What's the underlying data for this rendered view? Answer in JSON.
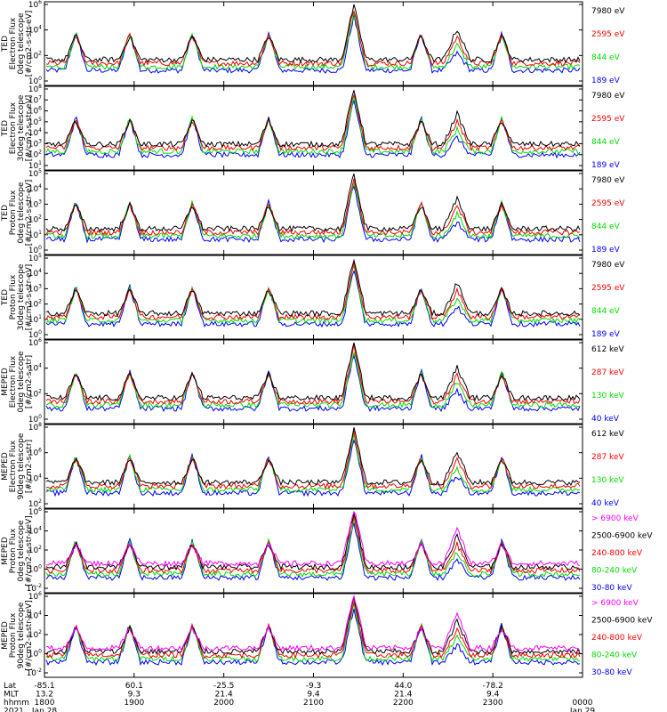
{
  "chart_data": {
    "type": "line",
    "title": "",
    "time_range_utc": [
      "2021 Jan 28 1800",
      "2021 Jan 29 0000"
    ],
    "panels": [
      {
        "ylabel": [
          "TED",
          "Electron Flux",
          "0deg telescope",
          "[#/cm2-s-str-eV]"
        ],
        "yticks": [
          "10^6",
          "10^4",
          "10^2",
          "10^0"
        ],
        "ylim_exp": [
          0,
          6
        ],
        "series": [
          {
            "name": "7980 eV",
            "color": "#000000"
          },
          {
            "name": "2595 eV",
            "color": "#ff0000"
          },
          {
            "name": "844 eV",
            "color": "#00dd00"
          },
          {
            "name": "189 eV",
            "color": "#0000ff"
          }
        ]
      },
      {
        "ylabel": [
          "TED",
          "Electron Flux",
          "30deg telescope",
          "[#/cm2-s-str-eV]"
        ],
        "yticks": [
          "10^8",
          "10^7",
          "10^6",
          "10^5",
          "10^4",
          "10^3",
          "10^2",
          "10^1"
        ],
        "ylim_exp": [
          0,
          8
        ],
        "series": [
          {
            "name": "7980 eV",
            "color": "#000000"
          },
          {
            "name": "2595 eV",
            "color": "#ff0000"
          },
          {
            "name": "844 eV",
            "color": "#00dd00"
          },
          {
            "name": "189 eV",
            "color": "#0000ff"
          }
        ]
      },
      {
        "ylabel": [
          "TED",
          "Proton Flux",
          "0deg telescope",
          "[#/cm2-s-str-eV]"
        ],
        "yticks": [
          "10^5",
          "10^4",
          "10^3",
          "10^2",
          "10^1",
          "10^0"
        ],
        "ylim_exp": [
          0,
          5
        ],
        "series": [
          {
            "name": "7980 eV",
            "color": "#000000"
          },
          {
            "name": "2595 eV",
            "color": "#ff0000"
          },
          {
            "name": "844 eV",
            "color": "#00dd00"
          },
          {
            "name": "189 eV",
            "color": "#0000ff"
          }
        ]
      },
      {
        "ylabel": [
          "TED",
          "Proton Flux",
          "30deg telescope",
          "[#/cm2-s-str-eV]"
        ],
        "yticks": [
          "10^5",
          "10^4",
          "10^3",
          "10^2",
          "10^1",
          "10^0"
        ],
        "ylim_exp": [
          0,
          5
        ],
        "series": [
          {
            "name": "7980 eV",
            "color": "#000000"
          },
          {
            "name": "2595 eV",
            "color": "#ff0000"
          },
          {
            "name": "844 eV",
            "color": "#00dd00"
          },
          {
            "name": "189 eV",
            "color": "#0000ff"
          }
        ]
      },
      {
        "ylabel": [
          "MEPED",
          "Electron Flux",
          "0deg telescope",
          "[#/cm2-s-str]"
        ],
        "yticks": [
          "10^6",
          "10^4",
          "10^2",
          "10^0"
        ],
        "ylim_exp": [
          0,
          6
        ],
        "series": [
          {
            "name": "612 keV",
            "color": "#000000"
          },
          {
            "name": "287 keV",
            "color": "#ff0000"
          },
          {
            "name": "130 keV",
            "color": "#00dd00"
          },
          {
            "name": "40 keV",
            "color": "#0000ff"
          }
        ]
      },
      {
        "ylabel": [
          "MEPED",
          "Electron Flux",
          "90deg telescope",
          "[#/cm2-s-str]"
        ],
        "yticks": [
          "10^8",
          "10^6",
          "10^4",
          "10^2"
        ],
        "ylim_exp": [
          2,
          8
        ],
        "series": [
          {
            "name": "612 keV",
            "color": "#000000"
          },
          {
            "name": "287 keV",
            "color": "#ff0000"
          },
          {
            "name": "130 keV",
            "color": "#00dd00"
          },
          {
            "name": "40 keV",
            "color": "#0000ff"
          }
        ]
      },
      {
        "ylabel": [
          "MEPED",
          "Proton Flux",
          "0deg telescope",
          "[#/cm2-s-str-keV]"
        ],
        "yticks": [
          "10^6",
          "10^4",
          "10^2",
          "10^0",
          "10^-2"
        ],
        "ylim_exp": [
          -2,
          6
        ],
        "series": [
          {
            "name": "> 6900 keV",
            "color": "#ff00ff"
          },
          {
            "name": "2500-6900 keV",
            "color": "#000000"
          },
          {
            "name": "240-800 keV",
            "color": "#ff0000"
          },
          {
            "name": "80-240 keV",
            "color": "#00dd00"
          },
          {
            "name": "30-80 keV",
            "color": "#0000ff"
          }
        ]
      },
      {
        "ylabel": [
          "MEPED",
          "Proton Flux",
          "90deg telescope",
          "[#/cm2-s-str-keV]"
        ],
        "yticks": [
          "10^6",
          "10^4",
          "10^2",
          "10^0",
          "10^-2"
        ],
        "ylim_exp": [
          -2,
          6
        ],
        "series": [
          {
            "name": "> 6900 keV",
            "color": "#ff00ff"
          },
          {
            "name": "2500-6900 keV",
            "color": "#000000"
          },
          {
            "name": "240-800 keV",
            "color": "#ff0000"
          },
          {
            "name": "80-240 keV",
            "color": "#00dd00"
          },
          {
            "name": "30-80 keV",
            "color": "#0000ff"
          }
        ]
      }
    ],
    "x_axis": {
      "row_labels": [
        "Lat",
        "MLT",
        "hhmm",
        "2021"
      ],
      "columns": [
        {
          "lat": "-85.1",
          "mlt": "13.2",
          "hhmm": "1800",
          "date": "Jan 28"
        },
        {
          "lat": "60.1",
          "mlt": "9.3",
          "hhmm": "1900",
          "date": ""
        },
        {
          "lat": "-25.5",
          "mlt": "21.4",
          "hhmm": "2000",
          "date": ""
        },
        {
          "lat": "-9.3",
          "mlt": "9.4",
          "hhmm": "2100",
          "date": ""
        },
        {
          "lat": "44.0",
          "mlt": "21.4",
          "hhmm": "2200",
          "date": ""
        },
        {
          "lat": "-78.2",
          "mlt": "9.4",
          "hhmm": "2300",
          "date": ""
        },
        {
          "lat": "",
          "mlt": "",
          "hhmm": "0000",
          "date": "Jan 29"
        }
      ]
    },
    "events": {
      "bursts_hours": [
        0.35,
        0.95,
        1.65,
        2.5,
        3.45,
        4.2,
        5.1
      ],
      "strong_hours": [
        3.45,
        4.6
      ]
    }
  }
}
